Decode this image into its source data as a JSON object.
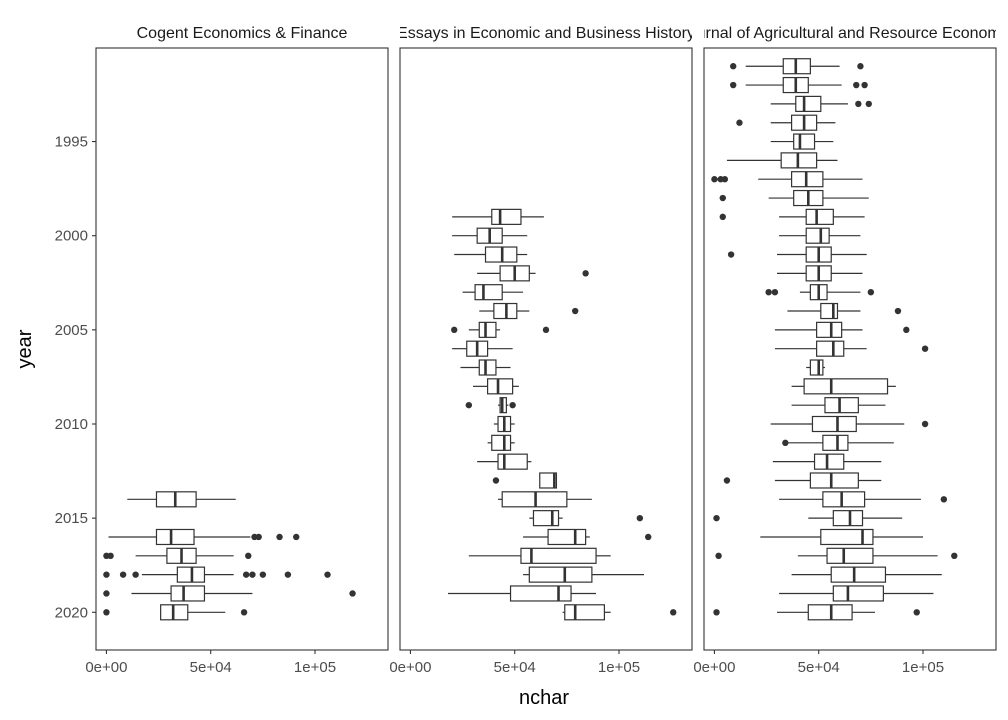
{
  "chart_data": {
    "type": "boxplot",
    "xlabel": "nchar",
    "ylabel": "year",
    "xlim": [
      -5000,
      135000
    ],
    "ylim": [
      1990,
      2020
    ],
    "x_ticks": [
      {
        "value": 0,
        "label": "0e+00"
      },
      {
        "value": 50000,
        "label": "5e+04"
      },
      {
        "value": 100000,
        "label": "1e+05"
      }
    ],
    "y_ticks": [
      {
        "value": 1995,
        "label": "1995"
      },
      {
        "value": 2000,
        "label": "2000"
      },
      {
        "value": 2005,
        "label": "2005"
      },
      {
        "value": 2010,
        "label": "2010"
      },
      {
        "value": 2015,
        "label": "2015"
      },
      {
        "value": 2020,
        "label": "2020"
      }
    ],
    "grid": false,
    "panels": [
      {
        "title": "Cogent Economics & Finance",
        "boxes": [
          {
            "year": 2014,
            "whisker_low": 10000,
            "q1": 24000,
            "median": 33000,
            "q3": 43000,
            "whisker_high": 62000,
            "outliers": []
          },
          {
            "year": 2016,
            "whisker_low": 1000,
            "q1": 24000,
            "median": 31000,
            "q3": 42000,
            "whisker_high": 69000,
            "outliers": [
              71000,
              73000,
              83000,
              91000
            ]
          },
          {
            "year": 2017,
            "whisker_low": 14000,
            "q1": 29000,
            "median": 36000,
            "q3": 43000,
            "whisker_high": 61000,
            "outliers": [
              0,
              2000,
              68000
            ]
          },
          {
            "year": 2018,
            "whisker_low": 17000,
            "q1": 34000,
            "median": 41000,
            "q3": 47000,
            "whisker_high": 61000,
            "outliers": [
              0,
              8000,
              14000,
              67000,
              70000,
              75000,
              87000,
              106000
            ]
          },
          {
            "year": 2019,
            "whisker_low": 12000,
            "q1": 31000,
            "median": 37000,
            "q3": 47000,
            "whisker_high": 70000,
            "outliers": [
              0,
              118000
            ]
          },
          {
            "year": 2020,
            "whisker_low": 26000,
            "q1": 26000,
            "median": 32000,
            "q3": 39000,
            "whisker_high": 57000,
            "outliers": [
              0,
              66000
            ]
          }
        ]
      },
      {
        "title": "Essays in Economic and Business History",
        "boxes": [
          {
            "year": 1999,
            "whisker_low": 20000,
            "q1": 39000,
            "median": 43000,
            "q3": 53000,
            "whisker_high": 64000,
            "outliers": []
          },
          {
            "year": 2000,
            "whisker_low": 20000,
            "q1": 32000,
            "median": 38000,
            "q3": 44000,
            "whisker_high": 56000,
            "outliers": []
          },
          {
            "year": 2001,
            "whisker_low": 21000,
            "q1": 36000,
            "median": 44000,
            "q3": 51000,
            "whisker_high": 56000,
            "outliers": []
          },
          {
            "year": 2002,
            "whisker_low": 32000,
            "q1": 43000,
            "median": 50000,
            "q3": 57000,
            "whisker_high": 60000,
            "outliers": [
              84000
            ]
          },
          {
            "year": 2003,
            "whisker_low": 25000,
            "q1": 31000,
            "median": 35000,
            "q3": 44000,
            "whisker_high": 54000,
            "outliers": []
          },
          {
            "year": 2004,
            "whisker_low": 33000,
            "q1": 40000,
            "median": 46000,
            "q3": 51000,
            "whisker_high": 57000,
            "outliers": [
              79000
            ]
          },
          {
            "year": 2005,
            "whisker_low": 28000,
            "q1": 33000,
            "median": 36000,
            "q3": 41000,
            "whisker_high": 43000,
            "outliers": [
              21000,
              65000
            ]
          },
          {
            "year": 2006,
            "whisker_low": 20000,
            "q1": 27000,
            "median": 32000,
            "q3": 37000,
            "whisker_high": 49000,
            "outliers": []
          },
          {
            "year": 2007,
            "whisker_low": 24000,
            "q1": 33000,
            "median": 36000,
            "q3": 41000,
            "whisker_high": 48000,
            "outliers": []
          },
          {
            "year": 2008,
            "whisker_low": 30000,
            "q1": 37000,
            "median": 42000,
            "q3": 49000,
            "whisker_high": 52000,
            "outliers": []
          },
          {
            "year": 2009,
            "whisker_low": 42000,
            "q1": 43000,
            "median": 44000,
            "q3": 46000,
            "whisker_high": 47000,
            "outliers": [
              28000,
              49000
            ]
          },
          {
            "year": 2010,
            "whisker_low": 40000,
            "q1": 42000,
            "median": 45000,
            "q3": 48000,
            "whisker_high": 50000,
            "outliers": []
          },
          {
            "year": 2011,
            "whisker_low": 37000,
            "q1": 39000,
            "median": 45000,
            "q3": 48000,
            "whisker_high": 50000,
            "outliers": []
          },
          {
            "year": 2012,
            "whisker_low": 32000,
            "q1": 42000,
            "median": 45000,
            "q3": 56000,
            "whisker_high": 58000,
            "outliers": []
          },
          {
            "year": 2013,
            "whisker_low": 62000,
            "q1": 62000,
            "median": 69000,
            "q3": 70000,
            "whisker_high": 70000,
            "outliers": [
              41000
            ]
          },
          {
            "year": 2014,
            "whisker_low": 42000,
            "q1": 44000,
            "median": 60000,
            "q3": 75000,
            "whisker_high": 87000,
            "outliers": []
          },
          {
            "year": 2015,
            "whisker_low": 57000,
            "q1": 59000,
            "median": 68000,
            "q3": 71000,
            "whisker_high": 73000,
            "outliers": [
              110000
            ]
          },
          {
            "year": 2016,
            "whisker_low": 54000,
            "q1": 66000,
            "median": 79000,
            "q3": 84000,
            "whisker_high": 86000,
            "outliers": [
              114000
            ]
          },
          {
            "year": 2017,
            "whisker_low": 28000,
            "q1": 53000,
            "median": 58000,
            "q3": 89000,
            "whisker_high": 96000,
            "outliers": []
          },
          {
            "year": 2018,
            "whisker_low": 54000,
            "q1": 57000,
            "median": 74000,
            "q3": 87000,
            "whisker_high": 112000,
            "outliers": []
          },
          {
            "year": 2019,
            "whisker_low": 18000,
            "q1": 48000,
            "median": 71000,
            "q3": 77000,
            "whisker_high": 89000,
            "outliers": []
          },
          {
            "year": 2020,
            "whisker_low": 73000,
            "q1": 74000,
            "median": 79000,
            "q3": 93000,
            "whisker_high": 96000,
            "outliers": [
              126000
            ]
          }
        ]
      },
      {
        "title": "Journal of Agricultural and Resource Economics",
        "boxes": [
          {
            "year": 1991,
            "whisker_low": 15000,
            "q1": 33000,
            "median": 39000,
            "q3": 46000,
            "whisker_high": 60000,
            "outliers": [
              9000,
              70000
            ]
          },
          {
            "year": 1992,
            "whisker_low": 15000,
            "q1": 33000,
            "median": 39000,
            "q3": 45000,
            "whisker_high": 61000,
            "outliers": [
              9000,
              68000,
              72000
            ]
          },
          {
            "year": 1993,
            "whisker_low": 27000,
            "q1": 39000,
            "median": 43000,
            "q3": 51000,
            "whisker_high": 64000,
            "outliers": [
              69000,
              74000
            ]
          },
          {
            "year": 1994,
            "whisker_low": 27000,
            "q1": 37000,
            "median": 43000,
            "q3": 49000,
            "whisker_high": 58000,
            "outliers": [
              12000
            ]
          },
          {
            "year": 1995,
            "whisker_low": 27000,
            "q1": 38000,
            "median": 41000,
            "q3": 48000,
            "whisker_high": 57000,
            "outliers": []
          },
          {
            "year": 1996,
            "whisker_low": 6000,
            "q1": 32000,
            "median": 40000,
            "q3": 49000,
            "whisker_high": 59000,
            "outliers": []
          },
          {
            "year": 1997,
            "whisker_low": 21000,
            "q1": 37000,
            "median": 44000,
            "q3": 52000,
            "whisker_high": 71000,
            "outliers": [
              0,
              3000,
              5000
            ]
          },
          {
            "year": 1998,
            "whisker_low": 26000,
            "q1": 38000,
            "median": 45000,
            "q3": 52000,
            "whisker_high": 74000,
            "outliers": [
              4000
            ]
          },
          {
            "year": 1999,
            "whisker_low": 31000,
            "q1": 44000,
            "median": 49000,
            "q3": 57000,
            "whisker_high": 72000,
            "outliers": [
              4000
            ]
          },
          {
            "year": 2000,
            "whisker_low": 31000,
            "q1": 44000,
            "median": 51000,
            "q3": 55000,
            "whisker_high": 70000,
            "outliers": []
          },
          {
            "year": 2001,
            "whisker_low": 30000,
            "q1": 44000,
            "median": 50000,
            "q3": 56000,
            "whisker_high": 73000,
            "outliers": [
              8000
            ]
          },
          {
            "year": 2002,
            "whisker_low": 30000,
            "q1": 44000,
            "median": 50000,
            "q3": 56000,
            "whisker_high": 71000,
            "outliers": []
          },
          {
            "year": 2003,
            "whisker_low": 41000,
            "q1": 46000,
            "median": 50000,
            "q3": 54000,
            "whisker_high": 70000,
            "outliers": [
              26000,
              29000,
              75000
            ]
          },
          {
            "year": 2004,
            "whisker_low": 35000,
            "q1": 51000,
            "median": 57000,
            "q3": 59000,
            "whisker_high": 70000,
            "outliers": [
              88000
            ]
          },
          {
            "year": 2005,
            "whisker_low": 29000,
            "q1": 49000,
            "median": 56000,
            "q3": 61000,
            "whisker_high": 71000,
            "outliers": [
              92000
            ]
          },
          {
            "year": 2006,
            "whisker_low": 29000,
            "q1": 49000,
            "median": 57000,
            "q3": 62000,
            "whisker_high": 73000,
            "outliers": [
              101000
            ]
          },
          {
            "year": 2007,
            "whisker_low": 44000,
            "q1": 46000,
            "median": 50000,
            "q3": 52000,
            "whisker_high": 53000,
            "outliers": []
          },
          {
            "year": 2008,
            "whisker_low": 37000,
            "q1": 43000,
            "median": 56000,
            "q3": 83000,
            "whisker_high": 87000,
            "outliers": []
          },
          {
            "year": 2009,
            "whisker_low": 37000,
            "q1": 53000,
            "median": 60000,
            "q3": 69000,
            "whisker_high": 82000,
            "outliers": []
          },
          {
            "year": 2010,
            "whisker_low": 27000,
            "q1": 47000,
            "median": 59000,
            "q3": 68000,
            "whisker_high": 91000,
            "outliers": [
              101000
            ]
          },
          {
            "year": 2011,
            "whisker_low": 34000,
            "q1": 52000,
            "median": 59000,
            "q3": 64000,
            "whisker_high": 86000,
            "outliers": [
              34000
            ]
          },
          {
            "year": 2012,
            "whisker_low": 28000,
            "q1": 48000,
            "median": 54000,
            "q3": 62000,
            "whisker_high": 80000,
            "outliers": []
          },
          {
            "year": 2013,
            "whisker_low": 29000,
            "q1": 46000,
            "median": 56000,
            "q3": 69000,
            "whisker_high": 80000,
            "outliers": [
              6000
            ]
          },
          {
            "year": 2014,
            "whisker_low": 31000,
            "q1": 52000,
            "median": 61000,
            "q3": 72000,
            "whisker_high": 99000,
            "outliers": [
              110000
            ]
          },
          {
            "year": 2015,
            "whisker_low": 45000,
            "q1": 57000,
            "median": 65000,
            "q3": 71000,
            "whisker_high": 90000,
            "outliers": [
              1000
            ]
          },
          {
            "year": 2016,
            "whisker_low": 22000,
            "q1": 51000,
            "median": 71000,
            "q3": 76000,
            "whisker_high": 100000,
            "outliers": []
          },
          {
            "year": 2017,
            "whisker_low": 40000,
            "q1": 54000,
            "median": 62000,
            "q3": 76000,
            "whisker_high": 107000,
            "outliers": [
              2000,
              115000
            ]
          },
          {
            "year": 2018,
            "whisker_low": 37000,
            "q1": 56000,
            "median": 67000,
            "q3": 82000,
            "whisker_high": 109000,
            "outliers": []
          },
          {
            "year": 2019,
            "whisker_low": 31000,
            "q1": 57000,
            "median": 64000,
            "q3": 81000,
            "whisker_high": 105000,
            "outliers": []
          },
          {
            "year": 2020,
            "whisker_low": 30000,
            "q1": 45000,
            "median": 56000,
            "q3": 66000,
            "whisker_high": 77000,
            "outliers": [
              1000,
              97000
            ]
          }
        ]
      }
    ]
  }
}
